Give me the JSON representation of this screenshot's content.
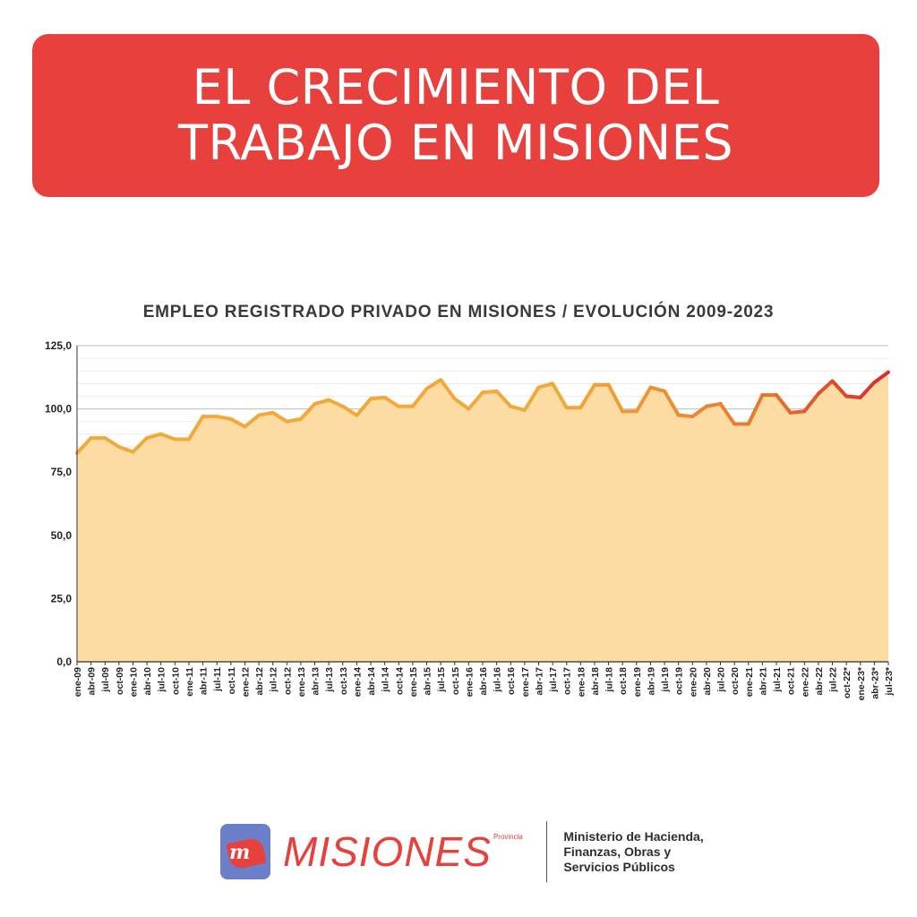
{
  "header": {
    "title_line1": "EL CRECIMIENTO DEL",
    "title_line2": "TRABAJO EN MISIONES"
  },
  "colors": {
    "banner": "#e8403c",
    "area_fill": "#fddca4",
    "line_early": "#f2a93a",
    "line_mid": "#e8782e",
    "line_late": "#d9302b"
  },
  "chart_data": {
    "type": "area",
    "title": "EMPLEO REGISTRADO PRIVADO EN MISIONES / EVOLUCIÓN 2009-2023",
    "xlabel": "",
    "ylabel": "",
    "ylim": [
      0,
      125
    ],
    "y_ticks": [
      "0,0",
      "25,0",
      "50,0",
      "75,0",
      "100,0",
      "125,0"
    ],
    "grid": true,
    "x_ticks": [
      "ene-09",
      "abr-09",
      "jul-09",
      "oct-09",
      "ene-10",
      "abr-10",
      "jul-10",
      "oct-10",
      "ene-11",
      "abr-11",
      "jul-11",
      "oct-11",
      "ene-12",
      "abr-12",
      "jul-12",
      "oct-12",
      "ene-13",
      "abr-13",
      "jul-13",
      "oct-13",
      "ene-14",
      "abr-14",
      "jul-14",
      "oct-14",
      "ene-15",
      "abr-15",
      "jul-15",
      "oct-15",
      "ene-16",
      "abr-16",
      "jul-16",
      "oct-16",
      "ene-17",
      "abr-17",
      "jul-17",
      "oct-17",
      "ene-18",
      "abr-18",
      "jul-18",
      "oct-18",
      "ene-19",
      "abr-19",
      "jul-19",
      "oct-19",
      "ene-20",
      "abr-20",
      "jul-20",
      "oct-20",
      "ene-21",
      "abr-21",
      "jul-21",
      "oct-21",
      "ene-22",
      "abr-22",
      "jul-22",
      "oct-22*",
      "ene-23*",
      "abr-23*",
      "jul-23*"
    ],
    "values": [
      82.5,
      88.5,
      88.5,
      85.0,
      83.0,
      88.5,
      90.0,
      88.0,
      88.0,
      97.0,
      97.0,
      96.0,
      93.0,
      97.5,
      98.5,
      95.0,
      96.0,
      102.0,
      103.5,
      101.0,
      97.5,
      104.0,
      104.5,
      101.0,
      101.0,
      108.0,
      111.5,
      104.0,
      100.0,
      106.5,
      107.0,
      101.0,
      99.5,
      108.5,
      110.0,
      100.5,
      100.5,
      109.5,
      109.5,
      99.0,
      99.0,
      108.5,
      107.0,
      97.5,
      97.0,
      101.0,
      102.0,
      94.0,
      94.0,
      105.5,
      105.5,
      98.5,
      99.0,
      106.0,
      111.0,
      105.0,
      104.5,
      110.5,
      114.5
    ]
  },
  "footer": {
    "logo_mark": "m",
    "brand": "MISIONES",
    "brand_sup": "Provincia",
    "ministry_line1": "Ministerio de Hacienda,",
    "ministry_line2": "Finanzas, Obras y",
    "ministry_line3": "Servicios Públicos"
  }
}
